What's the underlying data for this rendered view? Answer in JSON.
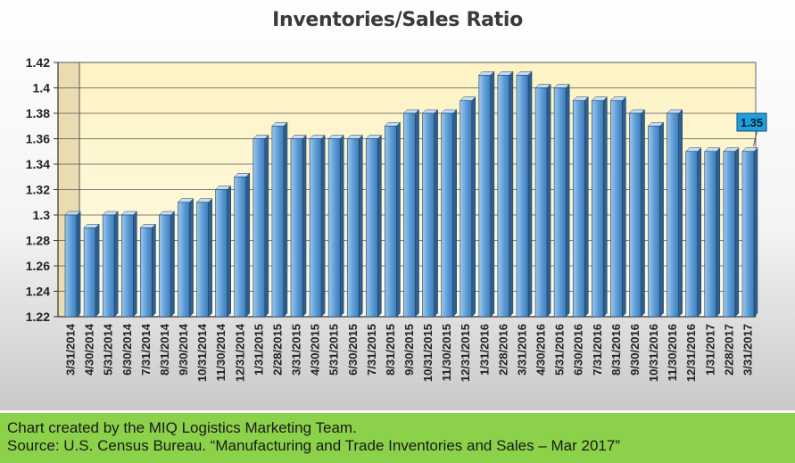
{
  "chart_data": {
    "type": "bar",
    "title": "Inventories/Sales Ratio",
    "xlabel": "",
    "ylabel": "",
    "ylim": [
      1.22,
      1.42
    ],
    "yticks": [
      "1.22",
      "1.24",
      "1.26",
      "1.28",
      "1.3",
      "1.32",
      "1.34",
      "1.36",
      "1.38",
      "1.4",
      "1.42"
    ],
    "grid": true,
    "categories": [
      "3/31/2014",
      "4/30/2014",
      "5/31/2014",
      "6/30/2014",
      "7/31/2014",
      "8/31/2014",
      "9/30/2014",
      "10/31/2014",
      "11/30/2014",
      "12/31/2014",
      "1/31/2015",
      "2/28/2015",
      "3/31/2015",
      "4/30/2015",
      "5/31/2015",
      "6/30/2015",
      "7/31/2015",
      "8/31/2015",
      "9/30/2015",
      "10/31/2015",
      "11/30/2015",
      "12/31/2015",
      "1/31/2016",
      "2/28/2016",
      "3/31/2016",
      "4/30/2016",
      "5/31/2016",
      "6/30/2016",
      "7/31/2016",
      "8/31/2016",
      "9/30/2016",
      "10/31/2016",
      "11/30/2016",
      "12/31/2016",
      "1/31/2017",
      "2/28/2017",
      "3/31/2017"
    ],
    "values": [
      1.3,
      1.29,
      1.3,
      1.3,
      1.29,
      1.3,
      1.31,
      1.31,
      1.32,
      1.33,
      1.36,
      1.37,
      1.36,
      1.36,
      1.36,
      1.36,
      1.36,
      1.37,
      1.38,
      1.38,
      1.38,
      1.39,
      1.41,
      1.41,
      1.41,
      1.4,
      1.4,
      1.39,
      1.39,
      1.39,
      1.38,
      1.37,
      1.38,
      1.35,
      1.35,
      1.35,
      1.35
    ],
    "annotation": "1.35",
    "colors": {
      "bar_front": "#5b9bd5",
      "bar_front_light": "#9cc8ee",
      "bar_side": "#2e5f8f",
      "bar_top": "#c6ddf3",
      "plot_back": "#fdf6d4",
      "annotation_fill": "#1fa0dc"
    }
  },
  "footer": {
    "line1": "Chart created by the MIQ Logistics Marketing Team.",
    "line2": "Source: U.S. Census Bureau. “Manufacturing and Trade Inventories and Sales – Mar 2017”",
    "background": "#8bd14a"
  }
}
